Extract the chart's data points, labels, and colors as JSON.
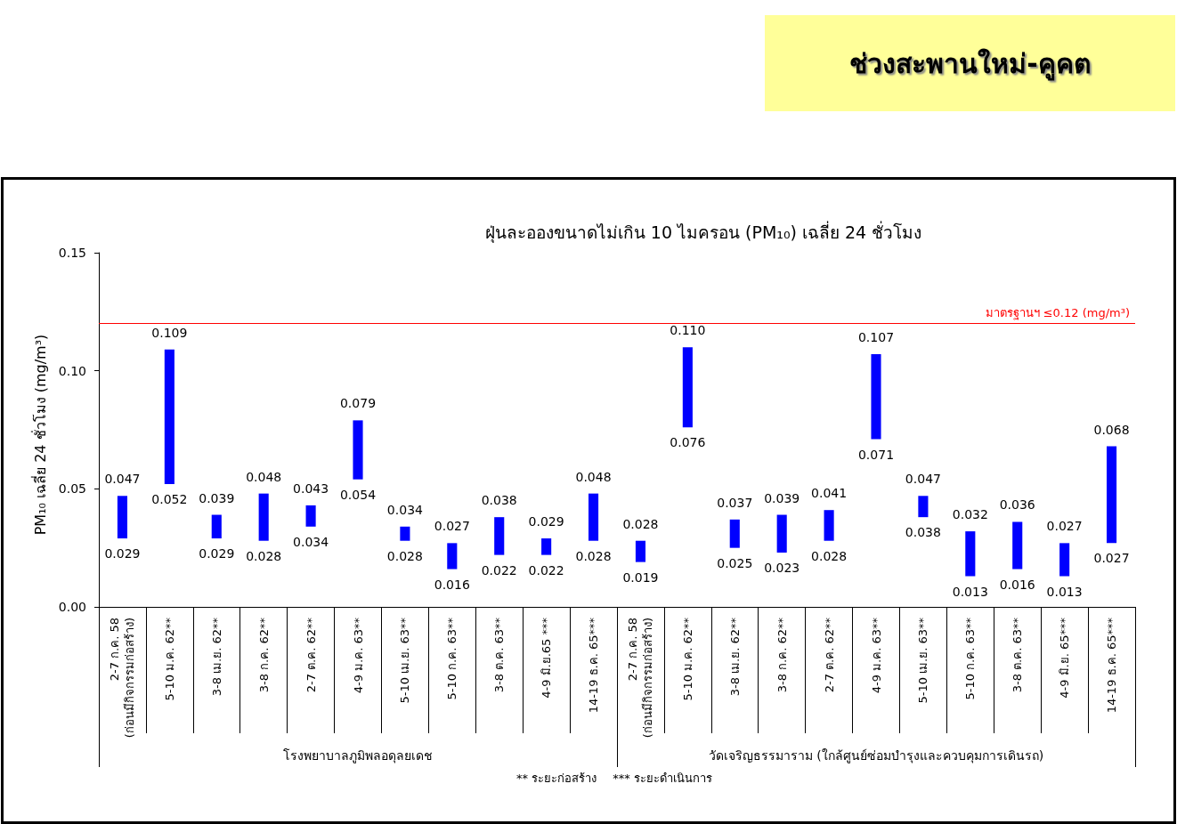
{
  "chart_data": {
    "type": "bar",
    "title": "ช่วงสะพานใหม่-คูคต",
    "subtitle": "ฝุ่นละอองขนาดไม่เกิน 10 ไมครอน (PM₁₀) เฉลี่ย 24 ชั่วโมง",
    "ylabel": "PM₁₀ เฉลี่ย 24 ชั่วโมง (mg/m³)",
    "categories": [
      "2-7 ก.ค. 58\n(ก่อนมีกิจกรรมก่อสร้าง)",
      "5-10 ม.ค. 62**",
      "3-8 เม.ย. 62**",
      "3-8 ก.ค. 62**",
      "2-7 ต.ค. 62**",
      "4-9 ม.ค. 63**",
      "5-10 เม.ย. 63**",
      "5-10 ก.ค. 63**",
      "3-8 ต.ค. 63**",
      "4-9 มิ.ย.65 ***",
      "14-19 ธ.ค. 65***",
      "2-7 ก.ค. 58\n(ก่อนมีกิจกรรมก่อสร้าง)",
      "5-10 ม.ค. 62**",
      "3-8 เม.ย. 62**",
      "3-8 ก.ค. 62**",
      "2-7 ต.ค. 62**",
      "4-9 ม.ค. 63**",
      "5-10 เม.ย. 63**",
      "5-10 ก.ค. 63**",
      "3-8 ต.ค. 63**",
      "4-9 มิ.ย. 65***",
      "14-19 ธ.ค. 65***"
    ],
    "color": "#0000ff",
    "base": [
      0.029,
      0.052,
      0.029,
      0.028,
      0.034,
      0.054,
      0.028,
      0.016,
      0.022,
      0.022,
      0.028,
      0.019,
      0.076,
      0.025,
      0.023,
      0.028,
      0.071,
      0.038,
      0.013,
      0.016,
      0.013,
      0.027
    ],
    "values": [
      0.018,
      0.057,
      0.01,
      0.02,
      0.009,
      0.025,
      0.006,
      0.011,
      0.016,
      0.007,
      0.02,
      0.009,
      0.034,
      0.012,
      0.016,
      0.013,
      0.036,
      0.009,
      0.019,
      0.02,
      0.014,
      0.041
    ],
    "value_labels": [
      "0.047",
      "0.109",
      "0.039",
      "0.048",
      "0.043",
      "0.079",
      "0.034",
      "0.027",
      "0.038",
      "0.029",
      "0.048",
      "0.028",
      "0.110",
      "0.037",
      "0.039",
      "0.041",
      "0.107",
      "0.047",
      "0.032",
      "0.036",
      "0.027",
      "0.068"
    ],
    "ylim": [
      0,
      0.15
    ],
    "yticks": [
      {
        "value": 0,
        "label": "0.00"
      },
      0.05,
      {
        "value": 0.1,
        "label": "0.10"
      },
      0.15
    ],
    "ref_lines": [
      {
        "axis": "y",
        "value": 0.12,
        "label": "มาตรฐานฯ ≤0.12 (mg/m³)",
        "color": "#ff0000",
        "line_style": "solid"
      }
    ],
    "annotations": [
      "0.029",
      "0.052",
      "0.029",
      "0.028",
      "0.034",
      "0.054",
      "0.028",
      "0.016",
      "0.022",
      "0.022",
      "0.028",
      "0.019",
      "0.076",
      "0.025",
      "0.023",
      "0.028",
      "0.071",
      "0.038",
      "0.013",
      "0.016",
      "0.013",
      "0.027",
      "โรงพยาบาลภูมิพลอดุลยเดช",
      "วัดเจริญธรรมาราม (ใกล้ศูนย์ซ่อมบำรุงและควบคุมการเดินรถ)",
      "** ระยะก่อสร้าง",
      "*** ระยะดำเนินการ"
    ]
  }
}
